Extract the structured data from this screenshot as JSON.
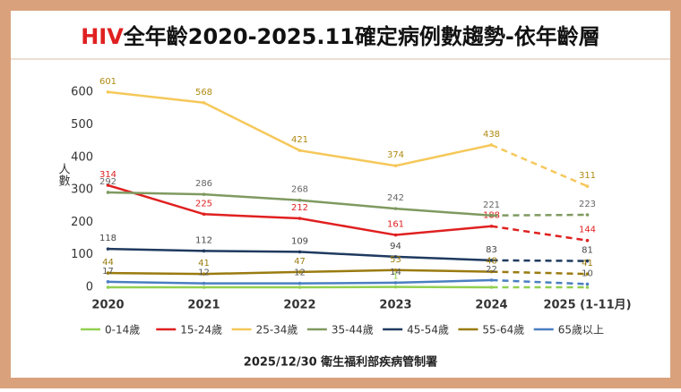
{
  "chart_data": {
    "type": "line",
    "title": "HIV全年齡2020-2025.11確定病例數趨勢-依年齡層",
    "title_highlight": {
      "length": 3,
      "color": "#e02020"
    },
    "y_label": "人數",
    "source": "2025/12/30 衛生福利部疾病管制署",
    "categories": [
      "2020",
      "2021",
      "2022",
      "2023",
      "2024",
      "2025 (1-11月)"
    ],
    "ylim": [
      0,
      650
    ],
    "yticks": [
      0,
      100,
      200,
      300,
      400,
      500,
      600
    ],
    "grid": false,
    "dashed_last_segment": true,
    "legend": "bottom",
    "series": [
      {
        "name": "0-14歲",
        "color": "#92d050",
        "values": [
          0,
          0,
          0,
          1,
          0,
          0
        ],
        "value_labels": [
          null,
          null,
          null,
          "1",
          null,
          null
        ]
      },
      {
        "name": "15-24歲",
        "color": "#e02020",
        "values": [
          314,
          225,
          212,
          161,
          188,
          144
        ]
      },
      {
        "name": "25-34歲",
        "color": "#f5c85a",
        "label_color": "#b08a10",
        "values": [
          601,
          568,
          421,
          374,
          438,
          311
        ]
      },
      {
        "name": "35-44歲",
        "color": "#7f9a60",
        "label_color": "#666666",
        "values": [
          292,
          286,
          268,
          242,
          221,
          223
        ]
      },
      {
        "name": "45-54歲",
        "color": "#1f3a5f",
        "label_color": "#444444",
        "values": [
          118,
          112,
          109,
          94,
          83,
          81
        ]
      },
      {
        "name": "55-64歲",
        "color": "#9a7b10",
        "values": [
          44,
          41,
          47,
          53,
          48,
          41
        ]
      },
      {
        "name": "65歲以上",
        "color": "#4a7fc1",
        "label_color": "#555555",
        "values": [
          17,
          12,
          12,
          14,
          22,
          10
        ]
      }
    ]
  }
}
